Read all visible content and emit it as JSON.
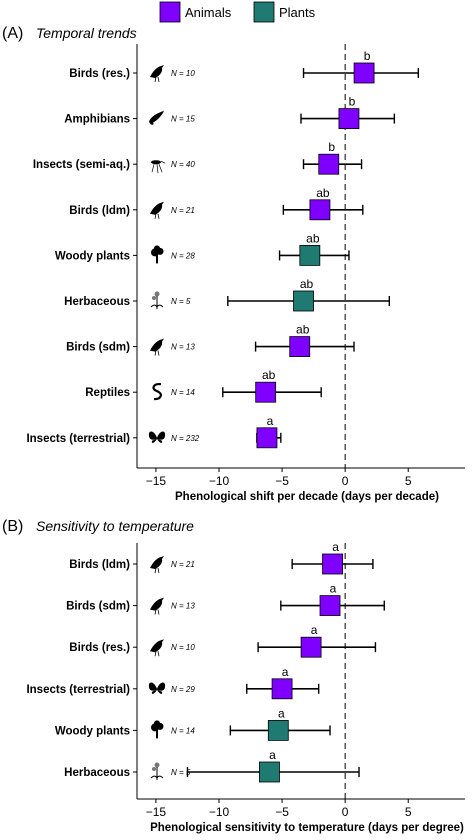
{
  "colors": {
    "animals": "#7F00FF",
    "plants": "#1F7A72",
    "axis": "#000000"
  },
  "legend": {
    "items": [
      {
        "label": "Animals",
        "group": "animals"
      },
      {
        "label": "Plants",
        "group": "plants"
      }
    ],
    "position": "top-center"
  },
  "chart_data": [
    {
      "type": "dot-whisker",
      "panel_label": "(A)",
      "title": "Temporal trends",
      "xlabel": "Phenological shift per decade (days per decade)",
      "xlim": [
        -16.5,
        9.5
      ],
      "xticks": [
        -15,
        -10,
        -5,
        0,
        5
      ],
      "reference_line_x": 0,
      "grid": false,
      "rows": [
        {
          "label": "Birds (res.)",
          "n": "N = 10",
          "group": "animals",
          "icon": "bird-icon",
          "value": 1.5,
          "lo": -3.3,
          "hi": 5.8,
          "letter": "b"
        },
        {
          "label": "Amphibians",
          "n": "N = 15",
          "group": "animals",
          "icon": "salamander-icon",
          "value": 0.3,
          "lo": -3.5,
          "hi": 3.9,
          "letter": "b"
        },
        {
          "label": "Insects (semi-aq.)",
          "n": "N = 40",
          "group": "animals",
          "icon": "mosquito-icon",
          "value": -1.3,
          "lo": -3.3,
          "hi": 1.3,
          "letter": "b"
        },
        {
          "label": "Birds (ldm)",
          "n": "N = 21",
          "group": "animals",
          "icon": "bird-icon",
          "value": -2.0,
          "lo": -4.9,
          "hi": 1.4,
          "letter": "ab"
        },
        {
          "label": "Woody plants",
          "n": "N = 28",
          "group": "plants",
          "icon": "tree-icon",
          "value": -2.8,
          "lo": -5.2,
          "hi": 0.3,
          "letter": "ab"
        },
        {
          "label": "Herbaceous",
          "n": "N = 5",
          "group": "plants",
          "icon": "herb-icon",
          "value": -3.3,
          "lo": -9.3,
          "hi": 3.5,
          "letter": "ab"
        },
        {
          "label": "Birds (sdm)",
          "n": "N = 13",
          "group": "animals",
          "icon": "bird-icon",
          "value": -3.6,
          "lo": -7.1,
          "hi": 0.7,
          "letter": "ab"
        },
        {
          "label": "Reptiles",
          "n": "N = 14",
          "group": "animals",
          "icon": "snake-icon",
          "value": -6.3,
          "lo": -9.7,
          "hi": -1.9,
          "letter": "ab"
        },
        {
          "label": "Insects (terrestrial)",
          "n": "N = 232",
          "group": "animals",
          "icon": "butterfly-icon",
          "value": -6.2,
          "lo": -7.0,
          "hi": -5.1,
          "letter": "a"
        }
      ]
    },
    {
      "type": "dot-whisker",
      "panel_label": "(B)",
      "title": "Sensitivity to temperature",
      "xlabel": "Phenological sensitivity to temperature (days per degree)",
      "xlim": [
        -16.5,
        9.5
      ],
      "xticks": [
        -15,
        -10,
        -5,
        0,
        5
      ],
      "reference_line_x": 0,
      "grid": false,
      "rows": [
        {
          "label": "Birds (ldm)",
          "n": "N = 21",
          "group": "animals",
          "icon": "bird-icon",
          "value": -1.0,
          "lo": -4.2,
          "hi": 2.2,
          "letter": "a"
        },
        {
          "label": "Birds (sdm)",
          "n": "N = 13",
          "group": "animals",
          "icon": "bird-icon",
          "value": -1.2,
          "lo": -5.1,
          "hi": 3.1,
          "letter": "a"
        },
        {
          "label": "Birds (res.)",
          "n": "N = 10",
          "group": "animals",
          "icon": "bird-icon",
          "value": -2.7,
          "lo": -6.9,
          "hi": 2.4,
          "letter": "a"
        },
        {
          "label": "Insects (terrestrial)",
          "n": "N = 29",
          "group": "animals",
          "icon": "butterfly-icon",
          "value": -5.0,
          "lo": -7.8,
          "hi": -2.1,
          "letter": "a"
        },
        {
          "label": "Woody plants",
          "n": "N = 14",
          "group": "plants",
          "icon": "tree-icon",
          "value": -5.3,
          "lo": -9.1,
          "hi": -1.2,
          "letter": "a"
        },
        {
          "label": "Herbaceous",
          "n": "N = 5",
          "group": "plants",
          "icon": "herb-icon",
          "value": -6.0,
          "lo": -12.5,
          "hi": 1.1,
          "letter": "a"
        }
      ]
    }
  ]
}
